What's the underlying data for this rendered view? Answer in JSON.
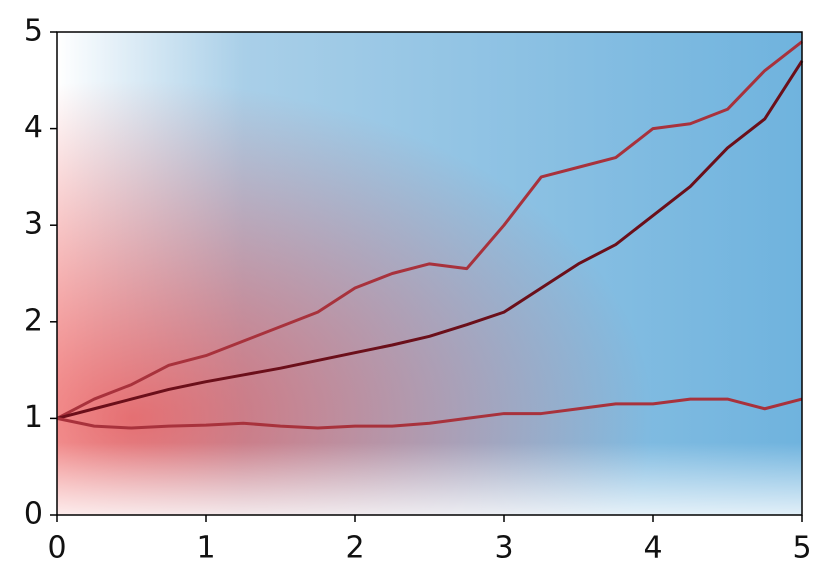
{
  "chart_data": {
    "type": "line",
    "x": [
      0,
      0.25,
      0.5,
      0.75,
      1,
      1.25,
      1.5,
      1.75,
      2,
      2.25,
      2.5,
      2.75,
      3,
      3.25,
      3.5,
      3.75,
      4,
      4.25,
      4.5,
      4.75,
      5
    ],
    "series": [
      {
        "color": "#a8323c",
        "values": [
          1,
          1.2,
          1.35,
          1.55,
          1.65,
          1.8,
          1.95,
          2.1,
          2.35,
          2.5,
          2.6,
          2.55,
          3.0,
          3.5,
          3.6,
          3.7,
          4.0,
          4.05,
          4.2,
          4.6,
          4.9
        ]
      },
      {
        "color": "#6b0f1a",
        "values": [
          1,
          1.1,
          1.2,
          1.3,
          1.38,
          1.45,
          1.52,
          1.6,
          1.68,
          1.76,
          1.85,
          1.97,
          2.1,
          2.35,
          2.6,
          2.8,
          3.1,
          3.4,
          3.8,
          4.1,
          4.7
        ]
      },
      {
        "color": "#a8323c",
        "values": [
          1,
          0.92,
          0.9,
          0.92,
          0.93,
          0.95,
          0.92,
          0.9,
          0.92,
          0.92,
          0.95,
          1.0,
          1.05,
          1.05,
          1.1,
          1.15,
          1.15,
          1.2,
          1.2,
          1.1,
          1.2
        ]
      }
    ],
    "xlim": [
      0,
      5
    ],
    "ylim": [
      0,
      5
    ],
    "xticks": [
      0,
      1,
      2,
      3,
      4,
      5
    ],
    "yticks": [
      0,
      1,
      2,
      3,
      4,
      5
    ]
  }
}
